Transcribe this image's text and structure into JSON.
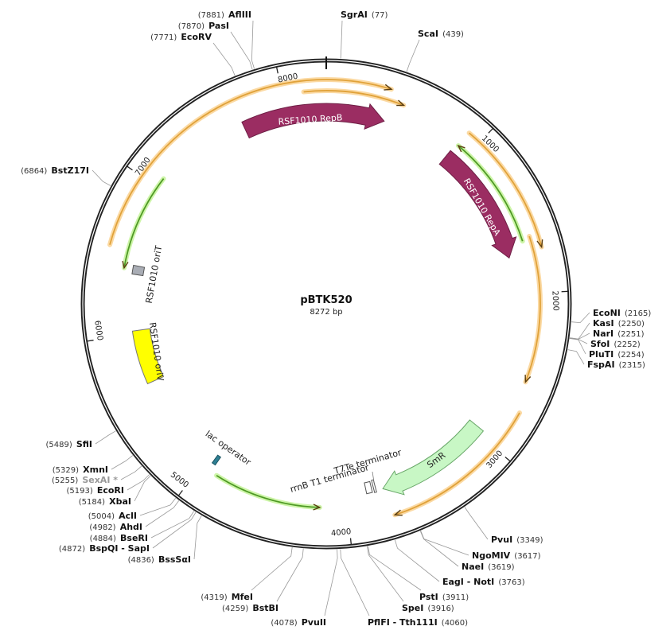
{
  "plasmid": {
    "name": "pBTK520",
    "length_label": "8272 bp",
    "length_bp": 8272
  },
  "ticks": [
    {
      "bp": 1000,
      "label": "1000"
    },
    {
      "bp": 2000,
      "label": "2000"
    },
    {
      "bp": 3000,
      "label": "3000"
    },
    {
      "bp": 4000,
      "label": "4000"
    },
    {
      "bp": 5000,
      "label": "5000"
    },
    {
      "bp": 6000,
      "label": "6000"
    },
    {
      "bp": 7000,
      "label": "7000"
    },
    {
      "bp": 8000,
      "label": "8000"
    }
  ],
  "features": [
    {
      "label": "RSF1010 RepB",
      "start": 7700,
      "end": 404,
      "direction": "forward",
      "shape": "arrow",
      "fill": "#9b2d62",
      "stroke": "#6e1f45"
    },
    {
      "label": "RSF1010 RepA",
      "start": 896,
      "end": 1744,
      "direction": "forward",
      "shape": "arrow",
      "fill": "#9b2d62",
      "stroke": "#6e1f45"
    },
    {
      "label": "SmR",
      "start": 2964,
      "end": 3745,
      "direction": "forward",
      "shape": "arrow",
      "fill": "#c8f7c5",
      "stroke": "#6aa86a"
    },
    {
      "label": "RSF1010 oriT",
      "start": 6405,
      "end": 6465,
      "shape": "box",
      "fill": "#a9adb5",
      "stroke": "#555"
    },
    {
      "label": "RSF1010 oriV",
      "start": 5650,
      "end": 6020,
      "shape": "box",
      "fill": "#ffff00",
      "stroke": "#777"
    },
    {
      "label": "lac operator",
      "start": 4930,
      "end": 4955,
      "shape": "box",
      "fill": "#2f7f93",
      "stroke": "#1b5563"
    },
    {
      "label": "T7Te terminator",
      "start": 3792,
      "end": 3806,
      "shape": "box",
      "fill": "#ffffff",
      "stroke": "#555"
    },
    {
      "label": "rrnB T1 terminator",
      "start": 3820,
      "end": 3860,
      "shape": "box",
      "fill": "#ffffff",
      "stroke": "#555"
    }
  ],
  "orf_arcs": [
    {
      "start": 6555,
      "end": 388,
      "direction": "forward",
      "color": "#e0a23a"
    },
    {
      "start": 8132,
      "end": 489,
      "direction": "forward",
      "color": "#e0a23a"
    },
    {
      "start": 917,
      "end": 1728,
      "direction": "forward",
      "color": "#e0a23a"
    },
    {
      "start": 1645,
      "end": 2560,
      "direction": "forward",
      "color": "#e0a23a"
    },
    {
      "start": 2744,
      "end": 3722,
      "direction": "forward",
      "color": "#e0a23a"
    }
  ],
  "primer_arcs": [
    {
      "start": 915,
      "end": 1661,
      "direction": "reverse",
      "color": "#4f9a25"
    },
    {
      "start": 6436,
      "end": 7068,
      "direction": "reverse",
      "color": "#4f9a25"
    },
    {
      "start": 4178,
      "end": 4885,
      "direction": "reverse",
      "color": "#4f9a25"
    }
  ],
  "sites": [
    {
      "name": "AflIII",
      "pos": "(7881)",
      "bp": 7881
    },
    {
      "name": "PasI",
      "pos": "(7870)",
      "bp": 7870
    },
    {
      "name": "EcoRV",
      "pos": "(7771)",
      "bp": 7771
    },
    {
      "name": "SgrAI",
      "pos": "(77)",
      "bp": 77
    },
    {
      "name": "ScaI",
      "pos": "(439)",
      "bp": 439
    },
    {
      "name": "BstZ17I",
      "pos": "(6864)",
      "bp": 6864
    },
    {
      "name": "EcoNI",
      "pos": "(2165)",
      "bp": 2165
    },
    {
      "name": "KasI",
      "pos": "(2250)",
      "bp": 2250
    },
    {
      "name": "NarI",
      "pos": "(2251)",
      "bp": 2251
    },
    {
      "name": "SfoI",
      "pos": "(2252)",
      "bp": 2252
    },
    {
      "name": "PluTI",
      "pos": "(2254)",
      "bp": 2254
    },
    {
      "name": "FspAI",
      "pos": "(2315)",
      "bp": 2315
    },
    {
      "name": "SfiI",
      "pos": "(5489)",
      "bp": 5489
    },
    {
      "name": "XmnI",
      "pos": "(5329)",
      "bp": 5329
    },
    {
      "name": "SexAI *",
      "pos": "(5255)",
      "bp": 5255,
      "color": "#999999"
    },
    {
      "name": "EcoRI",
      "pos": "(5193)",
      "bp": 5193
    },
    {
      "name": "XbaI",
      "pos": "(5184)",
      "bp": 5184
    },
    {
      "name": "AclI",
      "pos": "(5004)",
      "bp": 5004
    },
    {
      "name": "AhdI",
      "pos": "(4982)",
      "bp": 4982
    },
    {
      "name": "BseRI",
      "pos": "(4884)",
      "bp": 4884
    },
    {
      "name": "BspQI  - SapI",
      "pos": "(4872)",
      "bp": 4872
    },
    {
      "name": "BssSαI",
      "pos": "(4836)",
      "bp": 4836
    },
    {
      "name": "MfeI",
      "pos": "(4319)",
      "bp": 4319
    },
    {
      "name": "BstBI",
      "pos": "(4259)",
      "bp": 4259
    },
    {
      "name": "PvuII",
      "pos": "(4078)",
      "bp": 4078
    },
    {
      "name": "PflFI  - Tth111I",
      "pos": "(4060)",
      "bp": 4060
    },
    {
      "name": "SpeI",
      "pos": "(3916)",
      "bp": 3916
    },
    {
      "name": "PstI",
      "pos": "(3911)",
      "bp": 3911
    },
    {
      "name": "EagI  - NotI",
      "pos": "(3763)",
      "bp": 3763
    },
    {
      "name": "NaeI",
      "pos": "(3619)",
      "bp": 3619
    },
    {
      "name": "NgoMIV",
      "pos": "(3617)",
      "bp": 3617
    },
    {
      "name": "PvuI",
      "pos": "(3349)",
      "bp": 3349
    }
  ]
}
